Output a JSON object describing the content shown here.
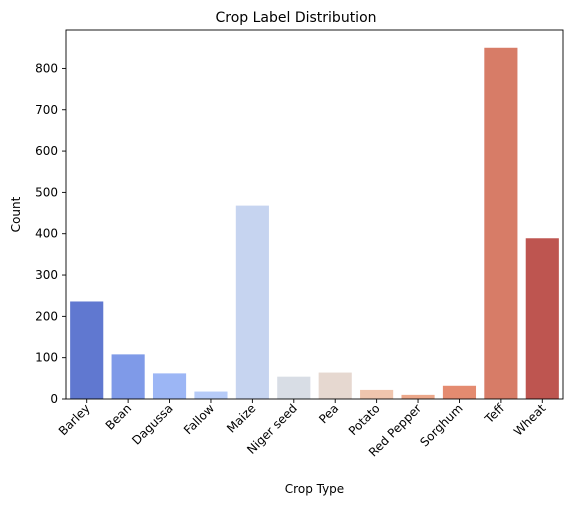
{
  "chart_data": {
    "type": "bar",
    "title": "Crop Label Distribution",
    "xlabel": "Crop Type",
    "ylabel": "Count",
    "categories": [
      "Barley",
      "Bean",
      "Dagussa",
      "Fallow",
      "Maize",
      "Niger seed",
      "Pea",
      "Potato",
      "Red Pepper",
      "Sorghum",
      "Teff",
      "Wheat"
    ],
    "values": [
      236,
      108,
      62,
      18,
      468,
      54,
      64,
      22,
      10,
      32,
      850,
      389
    ],
    "colors": [
      "#6078d0",
      "#7f9ae8",
      "#9cb6f5",
      "#b6cbf8",
      "#c6d4f0",
      "#d8dde5",
      "#e6d8d0",
      "#efc5ae",
      "#eca88b",
      "#e48b70",
      "#d77c67",
      "#be5550"
    ],
    "ylim": [
      0,
      893
    ],
    "yticks": [
      0,
      100,
      200,
      300,
      400,
      500,
      600,
      700,
      800
    ],
    "grid": false,
    "legend": "none"
  }
}
